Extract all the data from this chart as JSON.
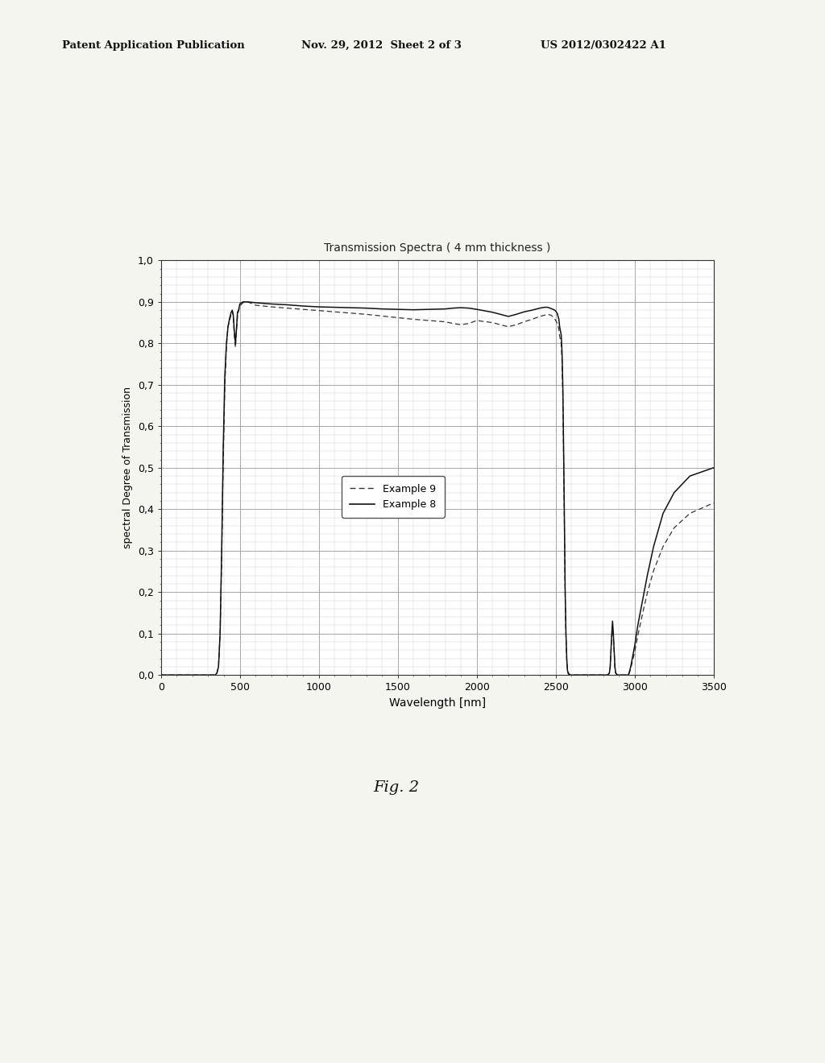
{
  "title": "Transmission Spectra ( 4 mm thickness )",
  "xlabel": "Wavelength [nm]",
  "ylabel": "spectral Degree of Transmission",
  "header_left": "Patent Application Publication",
  "header_mid": "Nov. 29, 2012  Sheet 2 of 3",
  "header_right": "US 2012/0302422 A1",
  "footer": "Fig. 2",
  "xlim": [
    0,
    3500
  ],
  "ylim": [
    0.0,
    1.0
  ],
  "xticks": [
    0,
    500,
    1000,
    1500,
    2000,
    2500,
    3000,
    3500
  ],
  "yticks": [
    0.0,
    0.1,
    0.2,
    0.3,
    0.4,
    0.5,
    0.6,
    0.7,
    0.8,
    0.9,
    1.0
  ],
  "ytick_labels": [
    "0,0",
    "0,1",
    "0,2",
    "0,3",
    "0,4",
    "0,5",
    "0,6",
    "0,7",
    "0,8",
    "0,9",
    "1,0"
  ],
  "legend": [
    "Example 9",
    "Example 8"
  ],
  "background_color": "#f5f5f0",
  "plot_bg": "#ffffff",
  "line_color": "#111111",
  "grid_color": "#999999"
}
